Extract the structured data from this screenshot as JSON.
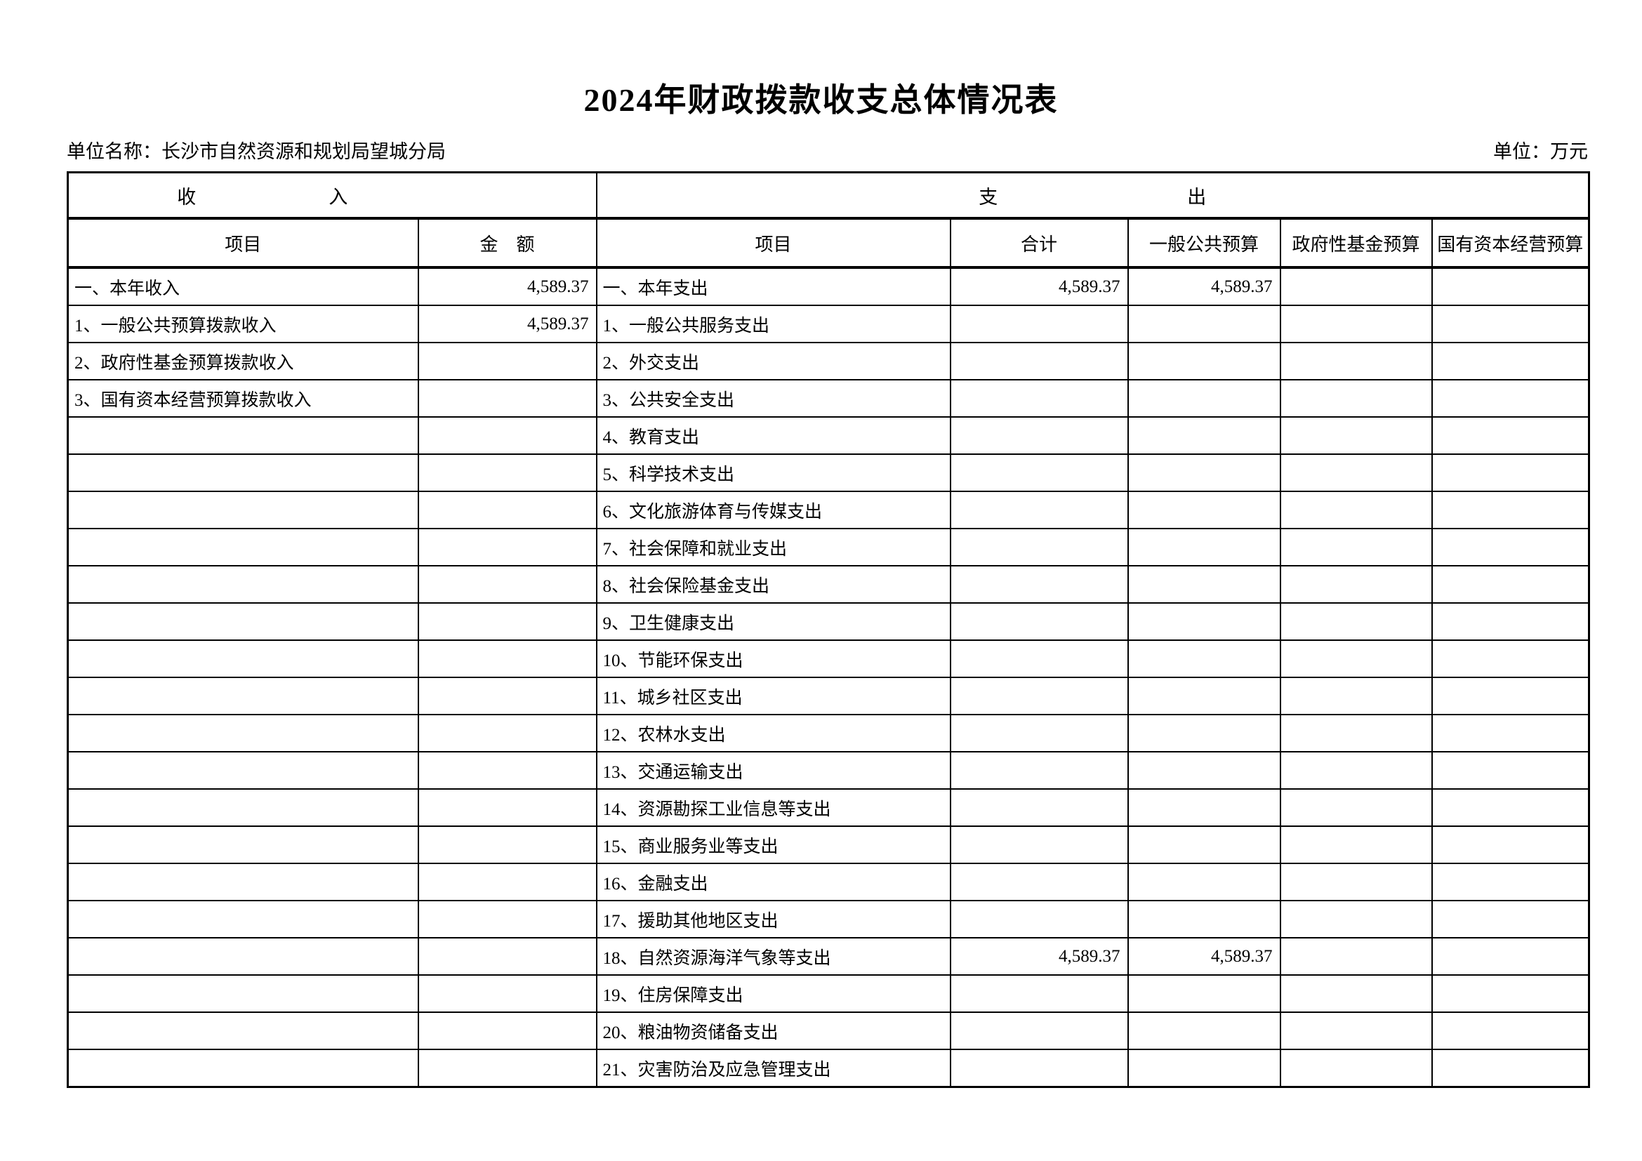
{
  "page": {
    "title": "2024年财政拨款收支总体情况表",
    "unit_name": "单位名称：长沙市自然资源和规划局望城分局",
    "unit": "单位：万元"
  },
  "table": {
    "section_income": "收　　　　　　　入",
    "section_expenditure": "支　　　　　　　　　　出",
    "col_headers": [
      "项目",
      "金　额",
      "项目",
      "合计",
      "一般公共预算",
      "政府性基金预算",
      "国有资本经营预算"
    ],
    "rows": [
      [
        "一、本年收入",
        "4,589.37",
        "一、本年支出",
        "4,589.37",
        "4,589.37",
        "",
        ""
      ],
      [
        "1、一般公共预算拨款收入",
        "4,589.37",
        "1、一般公共服务支出",
        "",
        "",
        "",
        ""
      ],
      [
        "2、政府性基金预算拨款收入",
        "",
        "2、外交支出",
        "",
        "",
        "",
        ""
      ],
      [
        "3、国有资本经营预算拨款收入",
        "",
        "3、公共安全支出",
        "",
        "",
        "",
        ""
      ],
      [
        "",
        "",
        "4、教育支出",
        "",
        "",
        "",
        ""
      ],
      [
        "",
        "",
        "5、科学技术支出",
        "",
        "",
        "",
        ""
      ],
      [
        "",
        "",
        "6、文化旅游体育与传媒支出",
        "",
        "",
        "",
        ""
      ],
      [
        "",
        "",
        "7、社会保障和就业支出",
        "",
        "",
        "",
        ""
      ],
      [
        "",
        "",
        "8、社会保险基金支出",
        "",
        "",
        "",
        ""
      ],
      [
        "",
        "",
        "9、卫生健康支出",
        "",
        "",
        "",
        ""
      ],
      [
        "",
        "",
        "10、节能环保支出",
        "",
        "",
        "",
        ""
      ],
      [
        "",
        "",
        "11、城乡社区支出",
        "",
        "",
        "",
        ""
      ],
      [
        "",
        "",
        "12、农林水支出",
        "",
        "",
        "",
        ""
      ],
      [
        "",
        "",
        "13、交通运输支出",
        "",
        "",
        "",
        ""
      ],
      [
        "",
        "",
        "14、资源勘探工业信息等支出",
        "",
        "",
        "",
        ""
      ],
      [
        "",
        "",
        "15、商业服务业等支出",
        "",
        "",
        "",
        ""
      ],
      [
        "",
        "",
        "16、金融支出",
        "",
        "",
        "",
        ""
      ],
      [
        "",
        "",
        "17、援助其他地区支出",
        "",
        "",
        "",
        ""
      ],
      [
        "",
        "",
        "18、自然资源海洋气象等支出",
        "4,589.37",
        "4,589.37",
        "",
        ""
      ],
      [
        "",
        "",
        "19、住房保障支出",
        "",
        "",
        "",
        ""
      ],
      [
        "",
        "",
        "20、粮油物资储备支出",
        "",
        "",
        "",
        ""
      ],
      [
        "",
        "",
        "21、灾害防治及应急管理支出",
        "",
        "",
        "",
        ""
      ]
    ]
  }
}
